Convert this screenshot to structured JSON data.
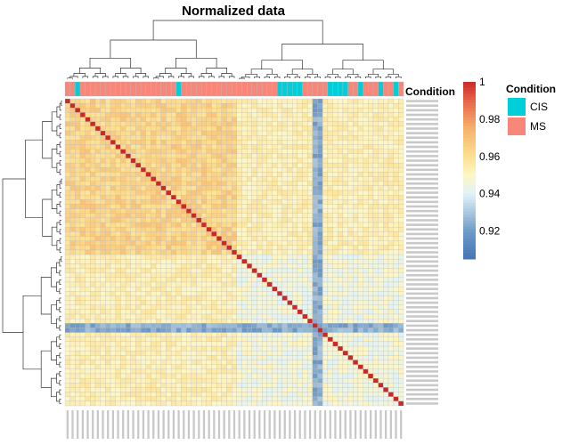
{
  "chart_data": {
    "type": "heatmap",
    "title": "Normalized data",
    "n": 67,
    "cis_columns": [
      2,
      22,
      42,
      43,
      44,
      45,
      46,
      52,
      53,
      54,
      55,
      58,
      62,
      65
    ],
    "outlier_column": 49,
    "outlier_row": 50,
    "block_split": 34,
    "annotation": {
      "label": "Condition",
      "categories": [
        {
          "name": "CIS",
          "color": "#00CED9"
        },
        {
          "name": "MS",
          "color": "#F8877A"
        }
      ]
    },
    "colorbar": {
      "range": [
        0.905,
        1.0
      ],
      "ticks": [
        {
          "value": 1.0,
          "label": "1"
        },
        {
          "value": 0.98,
          "label": "0.98"
        },
        {
          "value": 0.96,
          "label": "0.96"
        },
        {
          "value": 0.94,
          "label": "0.94"
        },
        {
          "value": 0.92,
          "label": "0.92"
        }
      ]
    }
  }
}
